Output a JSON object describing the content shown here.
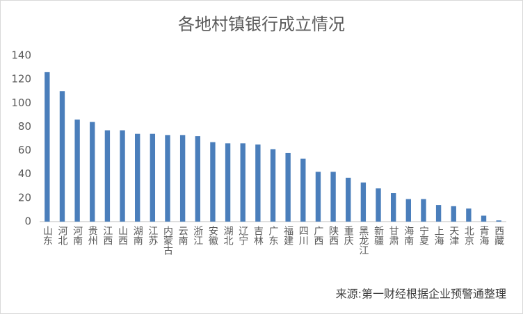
{
  "chart_data": {
    "type": "bar",
    "title": "各地村镇银行成立情况",
    "categories": [
      "山东",
      "河北",
      "河南",
      "贵州",
      "江西",
      "山西",
      "湖南",
      "江苏",
      "内蒙古",
      "云南",
      "浙江",
      "安徽",
      "湖北",
      "辽宁",
      "吉林",
      "广东",
      "福建",
      "四川",
      "广西",
      "陕西",
      "重庆",
      "黑龙江",
      "新疆",
      "甘肃",
      "海南",
      "宁夏",
      "上海",
      "天津",
      "北京",
      "青海",
      "西藏"
    ],
    "values": [
      126,
      110,
      86,
      84,
      77,
      77,
      74,
      74,
      73,
      73,
      72,
      67,
      66,
      66,
      65,
      61,
      58,
      53,
      42,
      42,
      37,
      33,
      28,
      24,
      19,
      19,
      14,
      13,
      11,
      5,
      1
    ],
    "color": "#4a7ebb",
    "ylim": [
      0,
      140
    ],
    "yticks": [
      0,
      20,
      40,
      60,
      80,
      100,
      120,
      140
    ],
    "grid": false,
    "source": "来源:第一财经根据企业预警通整理"
  }
}
